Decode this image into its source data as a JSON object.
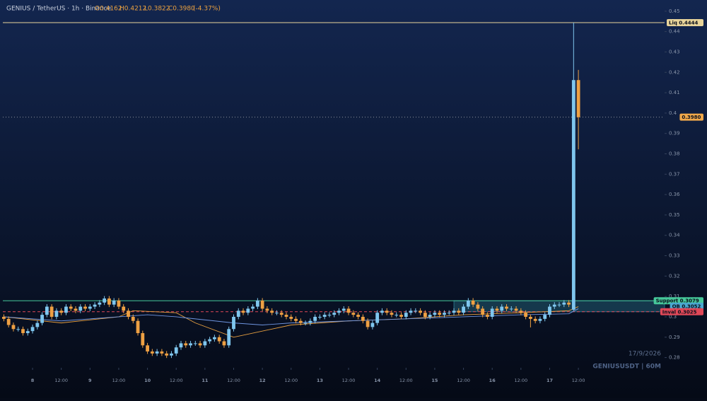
{
  "header": {
    "symbol": "GENIUS / TetherUS · 1h · Binance",
    "open": "O0.4162",
    "high": "H0.4212",
    "low": "L0.3822",
    "close": "C0.3980",
    "change": "(-4.37%)"
  },
  "watermark": {
    "date": "17/9/2026",
    "ticker": "GENIUSUSDT | 60M"
  },
  "chart_data": {
    "type": "candlestick",
    "up_color": "#7fc6ee",
    "down_color": "#eea043",
    "ylim": [
      0.275,
      0.4555
    ],
    "yticks": [
      0.28,
      0.29,
      0.3,
      0.31,
      0.32,
      0.33,
      0.34,
      0.35,
      0.36,
      0.37,
      0.38,
      0.39,
      0.4,
      0.41,
      0.42,
      0.43,
      0.44,
      0.45
    ],
    "xlim": [
      -0.8,
      138
    ],
    "xticks": [
      {
        "value": 6,
        "label": "8"
      },
      {
        "value": 12,
        "label": "12:00"
      },
      {
        "value": 18,
        "label": "9"
      },
      {
        "value": 24,
        "label": "12:00"
      },
      {
        "value": 30,
        "label": "10"
      },
      {
        "value": 36,
        "label": "12:00"
      },
      {
        "value": 42,
        "label": "11"
      },
      {
        "value": 48,
        "label": "12:00"
      },
      {
        "value": 54,
        "label": "12"
      },
      {
        "value": 60,
        "label": "12:00"
      },
      {
        "value": 66,
        "label": "13"
      },
      {
        "value": 72,
        "label": "12:00"
      },
      {
        "value": 78,
        "label": "14"
      },
      {
        "value": 84,
        "label": "12:00"
      },
      {
        "value": 90,
        "label": "15"
      },
      {
        "value": 96,
        "label": "12:00"
      },
      {
        "value": 102,
        "label": "16"
      },
      {
        "value": 108,
        "label": "12:00"
      },
      {
        "value": 114,
        "label": "17"
      },
      {
        "value": 120,
        "label": "12:00"
      }
    ],
    "candles": [
      [
        0.3,
        0.3012,
        0.2978,
        0.299
      ],
      [
        0.299,
        0.3002,
        0.2948,
        0.296
      ],
      [
        0.296,
        0.2972,
        0.2928,
        0.294
      ],
      [
        0.294,
        0.2952,
        0.2928,
        0.294
      ],
      [
        0.294,
        0.2952,
        0.2908,
        0.292
      ],
      [
        0.292,
        0.2942,
        0.2908,
        0.293
      ],
      [
        0.293,
        0.2962,
        0.2918,
        0.295
      ],
      [
        0.295,
        0.2982,
        0.2938,
        0.297
      ],
      [
        0.297,
        0.3022,
        0.2958,
        0.301
      ],
      [
        0.301,
        0.3062,
        0.2998,
        0.305
      ],
      [
        0.305,
        0.3062,
        0.2988,
        0.3
      ],
      [
        0.3,
        0.3042,
        0.2988,
        0.303
      ],
      [
        0.303,
        0.3042,
        0.3008,
        0.302
      ],
      [
        0.302,
        0.3062,
        0.3008,
        0.305
      ],
      [
        0.305,
        0.3062,
        0.3028,
        0.304
      ],
      [
        0.304,
        0.3052,
        0.3018,
        0.303
      ],
      [
        0.303,
        0.3062,
        0.3018,
        0.305
      ],
      [
        0.305,
        0.3062,
        0.3028,
        0.304
      ],
      [
        0.304,
        0.3062,
        0.3028,
        0.305
      ],
      [
        0.305,
        0.3072,
        0.3038,
        0.306
      ],
      [
        0.306,
        0.3082,
        0.3048,
        0.307
      ],
      [
        0.307,
        0.3102,
        0.3058,
        0.309
      ],
      [
        0.309,
        0.3102,
        0.3048,
        0.306
      ],
      [
        0.306,
        0.3092,
        0.3048,
        0.308
      ],
      [
        0.308,
        0.3092,
        0.3038,
        0.305
      ],
      [
        0.305,
        0.3062,
        0.3018,
        0.303
      ],
      [
        0.303,
        0.3042,
        0.2988,
        0.3
      ],
      [
        0.3,
        0.3012,
        0.2968,
        0.298
      ],
      [
        0.298,
        0.2992,
        0.2908,
        0.292
      ],
      [
        0.292,
        0.2932,
        0.2848,
        0.286
      ],
      [
        0.286,
        0.2872,
        0.2818,
        0.283
      ],
      [
        0.283,
        0.2842,
        0.2808,
        0.282
      ],
      [
        0.282,
        0.2842,
        0.2808,
        0.283
      ],
      [
        0.283,
        0.2842,
        0.2808,
        0.282
      ],
      [
        0.282,
        0.2832,
        0.2798,
        0.281
      ],
      [
        0.281,
        0.2832,
        0.2798,
        0.282
      ],
      [
        0.282,
        0.2862,
        0.2808,
        0.285
      ],
      [
        0.285,
        0.2882,
        0.2838,
        0.287
      ],
      [
        0.287,
        0.2882,
        0.2848,
        0.286
      ],
      [
        0.286,
        0.2882,
        0.2848,
        0.287
      ],
      [
        0.287,
        0.2882,
        0.2858,
        0.287
      ],
      [
        0.287,
        0.2882,
        0.2848,
        0.286
      ],
      [
        0.286,
        0.2892,
        0.2848,
        0.288
      ],
      [
        0.288,
        0.2902,
        0.2868,
        0.289
      ],
      [
        0.289,
        0.2912,
        0.2878,
        0.29
      ],
      [
        0.29,
        0.2912,
        0.2868,
        0.288
      ],
      [
        0.288,
        0.2892,
        0.2848,
        0.286
      ],
      [
        0.286,
        0.2952,
        0.2848,
        0.294
      ],
      [
        0.294,
        0.3012,
        0.2928,
        0.3
      ],
      [
        0.3,
        0.3042,
        0.2988,
        0.303
      ],
      [
        0.303,
        0.3042,
        0.3008,
        0.302
      ],
      [
        0.302,
        0.3052,
        0.3008,
        0.304
      ],
      [
        0.304,
        0.3062,
        0.3028,
        0.305
      ],
      [
        0.305,
        0.3092,
        0.3038,
        0.308
      ],
      [
        0.308,
        0.3092,
        0.3028,
        0.304
      ],
      [
        0.304,
        0.3052,
        0.3018,
        0.303
      ],
      [
        0.303,
        0.3042,
        0.3008,
        0.302
      ],
      [
        0.302,
        0.3032,
        0.3008,
        0.302
      ],
      [
        0.302,
        0.3032,
        0.2998,
        0.301
      ],
      [
        0.301,
        0.3022,
        0.2988,
        0.3
      ],
      [
        0.3,
        0.3012,
        0.2978,
        0.299
      ],
      [
        0.299,
        0.3002,
        0.2968,
        0.298
      ],
      [
        0.298,
        0.2992,
        0.2958,
        0.297
      ],
      [
        0.297,
        0.2982,
        0.2958,
        0.297
      ],
      [
        0.297,
        0.2992,
        0.2958,
        0.298
      ],
      [
        0.298,
        0.3012,
        0.2968,
        0.3
      ],
      [
        0.3,
        0.3012,
        0.2988,
        0.3
      ],
      [
        0.3,
        0.3022,
        0.2988,
        0.301
      ],
      [
        0.301,
        0.3022,
        0.2998,
        0.301
      ],
      [
        0.301,
        0.3032,
        0.2998,
        0.302
      ],
      [
        0.302,
        0.3042,
        0.3008,
        0.303
      ],
      [
        0.303,
        0.3052,
        0.3018,
        0.304
      ],
      [
        0.304,
        0.3052,
        0.3008,
        0.302
      ],
      [
        0.302,
        0.3032,
        0.2998,
        0.301
      ],
      [
        0.301,
        0.3022,
        0.2988,
        0.3
      ],
      [
        0.3,
        0.3012,
        0.2968,
        0.298
      ],
      [
        0.298,
        0.2992,
        0.2938,
        0.295
      ],
      [
        0.295,
        0.2982,
        0.2938,
        0.297
      ],
      [
        0.297,
        0.3032,
        0.2958,
        0.302
      ],
      [
        0.302,
        0.3042,
        0.3008,
        0.303
      ],
      [
        0.303,
        0.3042,
        0.3008,
        0.302
      ],
      [
        0.302,
        0.3032,
        0.2998,
        0.301
      ],
      [
        0.301,
        0.3022,
        0.2998,
        0.301
      ],
      [
        0.301,
        0.3022,
        0.2988,
        0.3
      ],
      [
        0.3,
        0.3032,
        0.2988,
        0.302
      ],
      [
        0.302,
        0.3042,
        0.3008,
        0.303
      ],
      [
        0.303,
        0.3042,
        0.3018,
        0.303
      ],
      [
        0.303,
        0.3042,
        0.3008,
        0.302
      ],
      [
        0.302,
        0.3032,
        0.2988,
        0.3
      ],
      [
        0.3,
        0.3022,
        0.2988,
        0.301
      ],
      [
        0.301,
        0.3032,
        0.2998,
        0.302
      ],
      [
        0.302,
        0.3032,
        0.2998,
        0.301
      ],
      [
        0.301,
        0.3032,
        0.2998,
        0.302
      ],
      [
        0.302,
        0.3032,
        0.3008,
        0.302
      ],
      [
        0.302,
        0.3042,
        0.3008,
        0.303
      ],
      [
        0.303,
        0.3042,
        0.3008,
        0.302
      ],
      [
        0.302,
        0.3062,
        0.3008,
        0.305
      ],
      [
        0.305,
        0.3092,
        0.3038,
        0.308
      ],
      [
        0.308,
        0.3092,
        0.3048,
        0.306
      ],
      [
        0.306,
        0.3072,
        0.3028,
        0.304
      ],
      [
        0.304,
        0.3052,
        0.2998,
        0.301
      ],
      [
        0.301,
        0.3022,
        0.2988,
        0.3
      ],
      [
        0.3,
        0.3052,
        0.2988,
        0.304
      ],
      [
        0.304,
        0.3052,
        0.3018,
        0.303
      ],
      [
        0.303,
        0.3062,
        0.3018,
        0.305
      ],
      [
        0.305,
        0.3062,
        0.3028,
        0.304
      ],
      [
        0.304,
        0.3052,
        0.3028,
        0.304
      ],
      [
        0.304,
        0.3052,
        0.3018,
        0.303
      ],
      [
        0.303,
        0.3042,
        0.3008,
        0.302
      ],
      [
        0.302,
        0.3032,
        0.2988,
        0.3
      ],
      [
        0.3,
        0.3012,
        0.2948,
        0.299
      ],
      [
        0.299,
        0.3002,
        0.2968,
        0.298
      ],
      [
        0.298,
        0.3002,
        0.2968,
        0.299
      ],
      [
        0.299,
        0.3022,
        0.2978,
        0.301
      ],
      [
        0.301,
        0.3062,
        0.2998,
        0.305
      ],
      [
        0.305,
        0.3072,
        0.3038,
        0.306
      ],
      [
        0.306,
        0.3072,
        0.3048,
        0.306
      ],
      [
        0.306,
        0.3082,
        0.3048,
        0.307
      ],
      [
        0.307,
        0.3082,
        0.3048,
        0.306
      ],
      [
        0.3035,
        0.4444,
        0.303,
        0.4162
      ],
      [
        0.4162,
        0.4212,
        0.3822,
        0.398
      ]
    ],
    "overlays": [
      {
        "color": "#e8a040",
        "x": [
          0,
          12,
          24,
          27,
          36,
          40,
          48,
          60,
          72,
          84,
          96,
          108,
          118,
          120
        ],
        "values": [
          0.3,
          0.297,
          0.3,
          0.303,
          0.302,
          0.297,
          0.29,
          0.296,
          0.298,
          0.299,
          0.301,
          0.302,
          0.303,
          0.305
        ]
      },
      {
        "color": "#6f95e0",
        "x": [
          0,
          12,
          24,
          30,
          36,
          48,
          54,
          60,
          72,
          84,
          96,
          108,
          118,
          120
        ],
        "values": [
          0.3,
          0.298,
          0.3,
          0.301,
          0.3,
          0.297,
          0.296,
          0.297,
          0.298,
          0.299,
          0.3,
          0.301,
          0.3015,
          0.304
        ]
      }
    ],
    "zone": {
      "from": 94,
      "top": 0.3079,
      "bottom": 0.3025,
      "color": "#3aa0b8"
    },
    "levels": [
      {
        "label": "Liq 0.4444",
        "value": 0.4444,
        "color": "#e8d49a",
        "style": "solid"
      },
      {
        "label": "0.3980",
        "value": 0.398,
        "color": "#8a8f9a",
        "style": "dotted",
        "tag": "#f0a84a"
      },
      {
        "label": "Support 0.3079",
        "value": 0.3079,
        "color": "#46c89a",
        "style": "solid"
      },
      {
        "label": "OB 0.3052",
        "value": 0.3052,
        "color": "#4aa8d0",
        "style": "none"
      },
      {
        "label": "Inval 0.3025",
        "value": 0.3025,
        "color": "#e04858",
        "style": "dashed"
      }
    ]
  }
}
